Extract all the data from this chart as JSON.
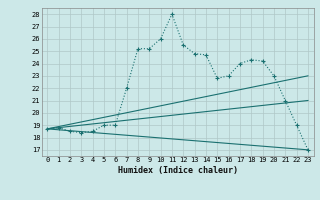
{
  "title": "",
  "xlabel": "Humidex (Indice chaleur)",
  "xlim": [
    -0.5,
    23.5
  ],
  "ylim": [
    16.5,
    28.5
  ],
  "xticks": [
    0,
    1,
    2,
    3,
    4,
    5,
    6,
    7,
    8,
    9,
    10,
    11,
    12,
    13,
    14,
    15,
    16,
    17,
    18,
    19,
    20,
    21,
    22,
    23
  ],
  "yticks": [
    17,
    18,
    19,
    20,
    21,
    22,
    23,
    24,
    25,
    26,
    27,
    28
  ],
  "bg_color": "#cce8e8",
  "grid_color": "#b0c8c8",
  "line_color": "#1a7070",
  "line1_x": [
    0,
    1,
    2,
    3,
    4,
    5,
    6,
    7,
    8,
    9,
    10,
    11,
    12,
    13,
    14,
    15,
    16,
    17,
    18,
    19,
    20,
    21,
    22,
    23
  ],
  "line1_y": [
    18.7,
    18.8,
    18.5,
    18.4,
    18.5,
    19.0,
    19.0,
    22.0,
    25.2,
    25.2,
    26.0,
    28.0,
    25.5,
    24.8,
    24.7,
    22.8,
    23.0,
    24.0,
    24.3,
    24.2,
    23.0,
    21.0,
    19.0,
    17.0
  ],
  "line2_x": [
    0,
    23
  ],
  "line2_y": [
    18.7,
    23.0
  ],
  "line3_x": [
    0,
    23
  ],
  "line3_y": [
    18.7,
    21.0
  ],
  "line4_x": [
    0,
    23
  ],
  "line4_y": [
    18.7,
    17.0
  ]
}
